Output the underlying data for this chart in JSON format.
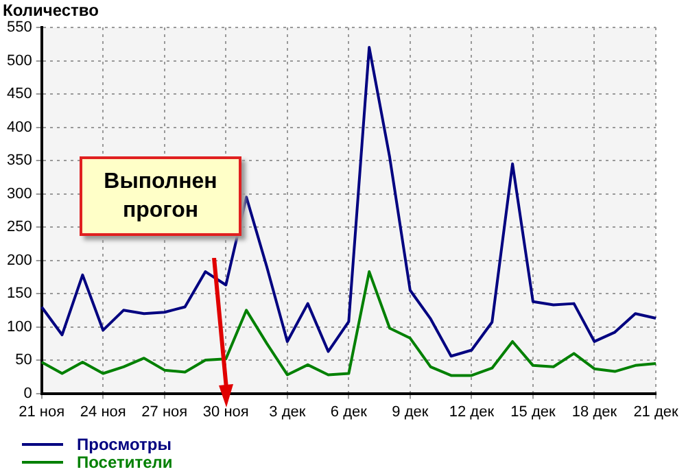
{
  "chart_data": {
    "type": "line",
    "ylabel": "Количество",
    "categories": [
      "21 ноя",
      null,
      null,
      "24 ноя",
      null,
      null,
      "27 ноя",
      null,
      null,
      "30 ноя",
      null,
      null,
      "3 дек",
      null,
      null,
      "6 дек",
      null,
      null,
      "9 дек",
      null,
      null,
      "12 дек",
      null,
      null,
      "15 дек",
      null,
      null,
      "18 дек",
      null,
      null,
      "21 дек"
    ],
    "series": [
      {
        "name": "Просмотры",
        "color": "#000080",
        "values": [
          130,
          88,
          178,
          95,
          125,
          120,
          122,
          130,
          183,
          163,
          295,
          190,
          78,
          135,
          63,
          108,
          520,
          355,
          155,
          112,
          56,
          65,
          107,
          345,
          138,
          133,
          135,
          78,
          92,
          120,
          113
        ]
      },
      {
        "name": "Посетители",
        "color": "#008000",
        "values": [
          47,
          30,
          47,
          30,
          40,
          53,
          35,
          32,
          50,
          52,
          125,
          75,
          28,
          43,
          28,
          30,
          183,
          98,
          83,
          40,
          27,
          27,
          38,
          78,
          42,
          40,
          60,
          37,
          33,
          42,
          45
        ]
      }
    ],
    "ylim": [
      0,
      550
    ],
    "yticks": [
      0,
      50,
      100,
      150,
      200,
      250,
      300,
      350,
      400,
      450,
      500,
      550
    ],
    "grid": true,
    "legend": "bottom left",
    "marker": "none",
    "line_style": "solid",
    "annotations": [
      "Выполнен прогон"
    ]
  }
}
